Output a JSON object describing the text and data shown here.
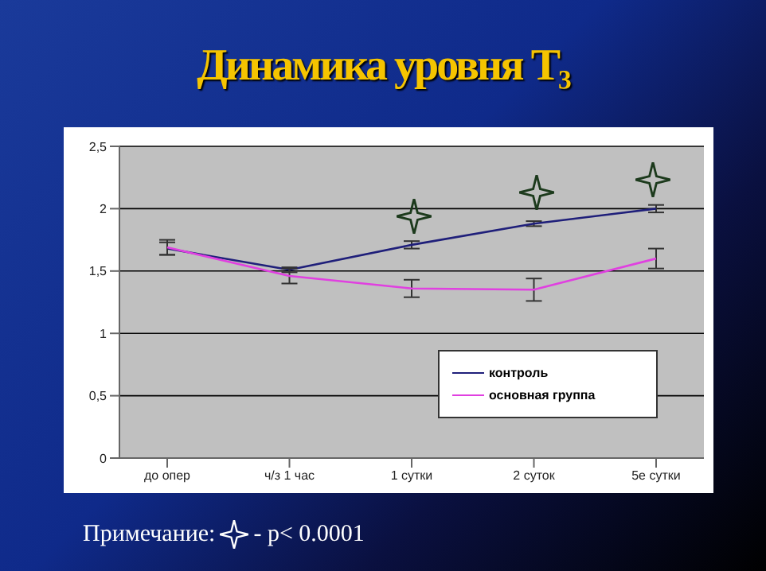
{
  "chart_data": {
    "type": "line",
    "title": "Динамика уровня Т₃",
    "categories": [
      "до опер",
      "ч/з 1 час",
      "1 сутки",
      "2 суток",
      "5е сутки"
    ],
    "series": [
      {
        "name": "контроль",
        "color": "#1f1f7a",
        "values": [
          1.68,
          1.51,
          1.71,
          1.88,
          2.0
        ],
        "errors": [
          0.05,
          0.02,
          0.03,
          0.02,
          0.03
        ]
      },
      {
        "name": "основная группа",
        "color": "#e040e0",
        "values": [
          1.69,
          1.46,
          1.36,
          1.35,
          1.6
        ],
        "errors": [
          0.06,
          0.06,
          0.07,
          0.09,
          0.08
        ]
      }
    ],
    "ylim": [
      0,
      2.5
    ],
    "yticks": [
      0,
      {
        "value": 0.5,
        "label": "0,5"
      },
      1,
      {
        "value": 1.5,
        "label": "1,5"
      },
      2,
      {
        "value": 2.5,
        "label": "2,5"
      }
    ],
    "grid": "y",
    "legend": "bottom right",
    "marker": "none",
    "line_style": "solid",
    "annotations": [
      "Примечание:",
      "- p< 0.0001"
    ]
  }
}
